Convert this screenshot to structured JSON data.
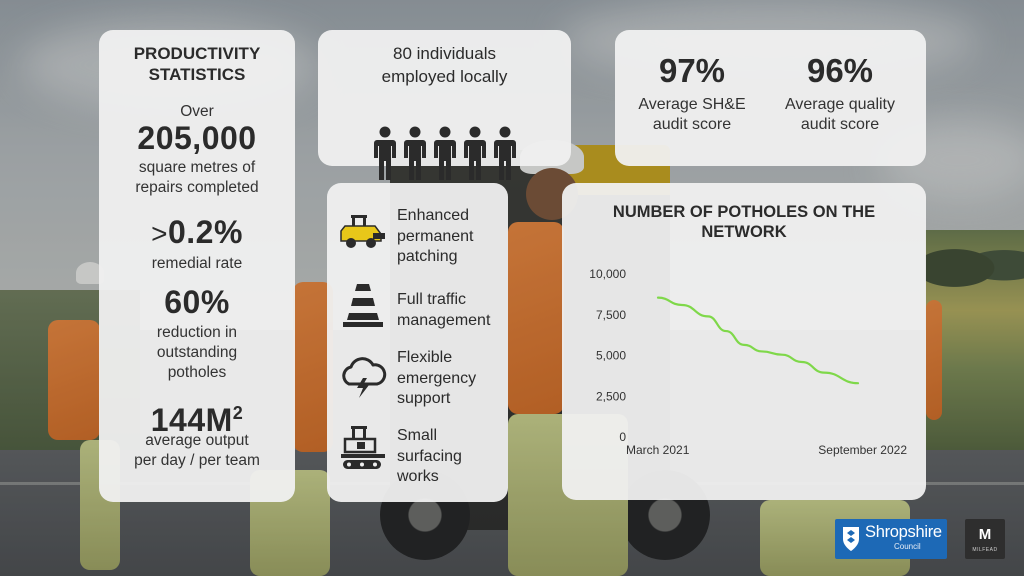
{
  "productivity": {
    "title_line1": "PRODUCTIVITY",
    "title_line2": "STATISTICS",
    "over_label": "Over",
    "area_value": "205,000",
    "area_label_line1": "square metres of",
    "area_label_line2": "repairs completed",
    "remedial_prefix": ">",
    "remedial_value": "0.2%",
    "remedial_label": "remedial rate",
    "reduction_value": "60%",
    "reduction_label_line1": "reduction in",
    "reduction_label_line2": "outstanding",
    "reduction_label_line3": "potholes",
    "output_value": "144M",
    "output_sup": "2",
    "output_label_line1": "average output",
    "output_label_line2": "per day / per team"
  },
  "employment": {
    "line1": "80 individuals",
    "line2": "employed locally",
    "icon_name": "people-icon"
  },
  "audit": {
    "she_value": "97%",
    "she_label_line1": "Average SH&E",
    "she_label_line2": "audit score",
    "quality_value": "96%",
    "quality_label_line1": "Average quality",
    "quality_label_line2": "audit score"
  },
  "services": [
    {
      "icon": "patching-machine-icon",
      "lines": [
        "Enhanced",
        "permanent",
        "patching"
      ]
    },
    {
      "icon": "traffic-cone-icon",
      "lines": [
        "Full traffic",
        "management"
      ]
    },
    {
      "icon": "storm-cloud-icon",
      "lines": [
        "Flexible",
        "emergency",
        "support"
      ]
    },
    {
      "icon": "paver-icon",
      "lines": [
        "Small",
        "surfacing",
        "works"
      ]
    }
  ],
  "chart_data": {
    "type": "line",
    "title_line1": "NUMBER OF POTHOLES ON THE",
    "title_line2": "NETWORK",
    "x_labels": [
      "March 2021",
      "September 2022"
    ],
    "y_ticks": [
      "10,000",
      "7,500",
      "5,000",
      "2,500",
      "0"
    ],
    "ylim": [
      0,
      10000
    ],
    "xlim": [
      0,
      1
    ],
    "grid": false,
    "legend": "none",
    "series": [
      {
        "color": "#7fd84a",
        "points": [
          {
            "x": 0.0,
            "y": 8550
          },
          {
            "x": 0.12,
            "y": 8100
          },
          {
            "x": 0.25,
            "y": 7400
          },
          {
            "x": 0.34,
            "y": 6500
          },
          {
            "x": 0.43,
            "y": 5650
          },
          {
            "x": 0.52,
            "y": 5250
          },
          {
            "x": 0.62,
            "y": 5050
          },
          {
            "x": 0.72,
            "y": 4600
          },
          {
            "x": 0.83,
            "y": 3950
          },
          {
            "x": 1.0,
            "y": 3300
          }
        ]
      }
    ]
  },
  "logos": {
    "shropshire_name": "Shropshire",
    "shropshire_sub": "Council",
    "milestone_mark": "M",
    "milestone_sub": "MILFEAD"
  }
}
